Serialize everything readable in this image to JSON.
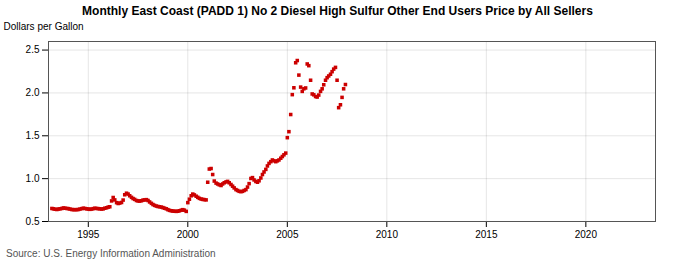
{
  "chart_data": {
    "type": "scatter",
    "title": "Monthly East Coast (PADD 1) No 2 Diesel High Sulfur Other End Users Price by All Sellers",
    "ylabel": "Dollars per Gallon",
    "source": "Source: U.S. Energy Information Administration",
    "color": "#cc0000",
    "marker": "square",
    "grid": true,
    "xlim": [
      1993.0,
      2023.5
    ],
    "ylim": [
      0.5,
      2.6
    ],
    "xticks": [
      1995,
      2000,
      2005,
      2010,
      2015,
      2020
    ],
    "yticks": [
      0.5,
      {
        "value": 1.0,
        "label": "1.0"
      },
      1.5,
      {
        "value": 2.0,
        "label": "2.0"
      },
      2.5
    ],
    "x": [
      1993.17,
      1993.25,
      1993.33,
      1993.42,
      1993.5,
      1993.58,
      1993.67,
      1993.75,
      1993.83,
      1993.92,
      1994.0,
      1994.08,
      1994.17,
      1994.25,
      1994.33,
      1994.42,
      1994.5,
      1994.58,
      1994.67,
      1994.75,
      1994.83,
      1994.92,
      1995.0,
      1995.08,
      1995.17,
      1995.25,
      1995.33,
      1995.42,
      1995.5,
      1995.58,
      1995.67,
      1995.75,
      1995.83,
      1995.92,
      1996.0,
      1996.08,
      1996.17,
      1996.25,
      1996.33,
      1996.42,
      1996.5,
      1996.58,
      1996.67,
      1996.75,
      1996.83,
      1996.92,
      1997.0,
      1997.08,
      1997.17,
      1997.25,
      1997.33,
      1997.42,
      1997.5,
      1997.58,
      1997.67,
      1997.75,
      1997.83,
      1997.92,
      1998.0,
      1998.08,
      1998.17,
      1998.25,
      1998.33,
      1998.42,
      1998.5,
      1998.58,
      1998.67,
      1998.75,
      1998.83,
      1998.92,
      1999.0,
      1999.08,
      1999.17,
      1999.25,
      1999.33,
      1999.42,
      1999.5,
      1999.58,
      1999.67,
      1999.75,
      1999.83,
      1999.92,
      2000.0,
      2000.08,
      2000.17,
      2000.25,
      2000.33,
      2000.42,
      2000.5,
      2000.58,
      2000.67,
      2000.75,
      2000.83,
      2000.92,
      2001.0,
      2001.08,
      2001.17,
      2001.25,
      2001.33,
      2001.42,
      2001.5,
      2001.58,
      2001.67,
      2001.75,
      2001.83,
      2001.92,
      2002.0,
      2002.08,
      2002.17,
      2002.25,
      2002.33,
      2002.42,
      2002.5,
      2002.58,
      2002.67,
      2002.75,
      2002.83,
      2002.92,
      2003.0,
      2003.08,
      2003.17,
      2003.25,
      2003.33,
      2003.42,
      2003.5,
      2003.58,
      2003.67,
      2003.75,
      2003.83,
      2003.92,
      2004.0,
      2004.08,
      2004.17,
      2004.25,
      2004.33,
      2004.42,
      2004.5,
      2004.58,
      2004.67,
      2004.75,
      2004.83,
      2004.92,
      2005.0,
      2005.08,
      2005.17,
      2005.25,
      2005.33,
      2005.42,
      2005.5,
      2005.58,
      2005.67,
      2005.75,
      2005.83,
      2005.92,
      2006.0,
      2006.08,
      2006.17,
      2006.25,
      2006.33,
      2006.42,
      2006.5,
      2006.58,
      2006.67,
      2006.75,
      2006.83,
      2006.92,
      2007.0,
      2007.08,
      2007.17,
      2007.25,
      2007.33,
      2007.42,
      2007.5,
      2007.58,
      2007.67,
      2007.75,
      2007.83,
      2007.92
    ],
    "values": [
      0.652,
      0.648,
      0.643,
      0.64,
      0.645,
      0.648,
      0.652,
      0.658,
      0.655,
      0.652,
      0.65,
      0.645,
      0.64,
      0.638,
      0.638,
      0.638,
      0.64,
      0.645,
      0.65,
      0.655,
      0.652,
      0.648,
      0.645,
      0.642,
      0.645,
      0.65,
      0.655,
      0.652,
      0.65,
      0.648,
      0.645,
      0.648,
      0.655,
      0.66,
      0.668,
      0.672,
      0.74,
      0.78,
      0.752,
      0.72,
      0.71,
      0.715,
      0.722,
      0.75,
      0.812,
      0.83,
      0.82,
      0.8,
      0.782,
      0.768,
      0.758,
      0.745,
      0.74,
      0.738,
      0.742,
      0.75,
      0.752,
      0.755,
      0.745,
      0.728,
      0.712,
      0.698,
      0.688,
      0.68,
      0.675,
      0.672,
      0.668,
      0.662,
      0.655,
      0.648,
      0.638,
      0.63,
      0.625,
      0.622,
      0.62,
      0.618,
      0.62,
      0.625,
      0.632,
      0.638,
      0.632,
      0.618,
      0.72,
      0.76,
      0.8,
      0.82,
      0.81,
      0.795,
      0.782,
      0.77,
      0.762,
      0.758,
      0.755,
      0.752,
      0.958,
      1.112,
      1.118,
      1.048,
      0.972,
      0.948,
      0.938,
      0.928,
      0.92,
      0.938,
      0.952,
      0.962,
      0.968,
      0.952,
      0.932,
      0.912,
      0.892,
      0.872,
      0.862,
      0.852,
      0.848,
      0.852,
      0.862,
      0.872,
      0.902,
      0.942,
      1.002,
      1.012,
      0.985,
      0.968,
      0.958,
      0.975,
      1.008,
      1.048,
      1.078,
      1.108,
      1.148,
      1.178,
      1.198,
      1.218,
      1.208,
      1.198,
      1.208,
      1.218,
      1.238,
      1.258,
      1.278,
      1.298,
      1.478,
      1.548,
      1.748,
      1.98,
      2.06,
      2.352,
      2.378,
      2.208,
      2.068,
      2.018,
      2.048,
      2.058,
      2.338,
      2.318,
      2.148,
      1.988,
      1.978,
      1.958,
      1.952,
      1.975,
      2.018,
      2.048,
      2.095,
      2.148,
      2.178,
      2.198,
      2.218,
      2.248,
      2.278,
      2.298,
      2.148,
      1.828,
      1.862,
      1.948,
      2.048,
      2.098
    ]
  }
}
